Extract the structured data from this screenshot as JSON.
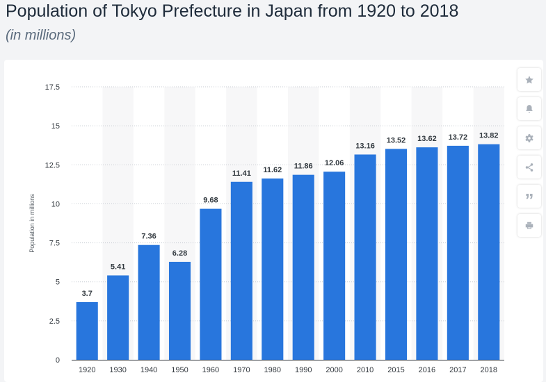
{
  "page": {
    "title": "Population of Tokyo Prefecture in Japan from 1920 to 2018",
    "subtitle": "(in millions)"
  },
  "toolbar": {
    "icons": [
      "star-icon",
      "bell-icon",
      "gear-icon",
      "share-icon",
      "quote-icon",
      "print-icon"
    ],
    "quote_glyph": "”"
  },
  "chart_data": {
    "type": "bar",
    "title": "Population of Tokyo Prefecture in Japan from 1920 to 2018",
    "subtitle": "(in millions)",
    "xlabel": "",
    "ylabel": "Population in millions",
    "categories": [
      "1920",
      "1930",
      "1940",
      "1950",
      "1960",
      "1970",
      "1980",
      "1990",
      "2000",
      "2010",
      "2015",
      "2016",
      "2017",
      "2018"
    ],
    "values": [
      3.7,
      5.41,
      7.36,
      6.28,
      9.68,
      11.41,
      11.62,
      11.86,
      12.06,
      13.16,
      13.52,
      13.62,
      13.72,
      13.82
    ],
    "value_labels": [
      "3.7",
      "5.41",
      "7.36",
      "6.28",
      "9.68",
      "11.41",
      "11.62",
      "11.86",
      "12.06",
      "13.16",
      "13.52",
      "13.62",
      "13.72",
      "13.82"
    ],
    "ylim": [
      0,
      17.5
    ],
    "yticks": [
      "0",
      "2.5",
      "5",
      "7.5",
      "10",
      "12.5",
      "15",
      "17.5"
    ],
    "grid": true,
    "bar_color": "#2876dd",
    "band_color": "#f7f7f8",
    "grid_color": "#c8cdd3"
  }
}
